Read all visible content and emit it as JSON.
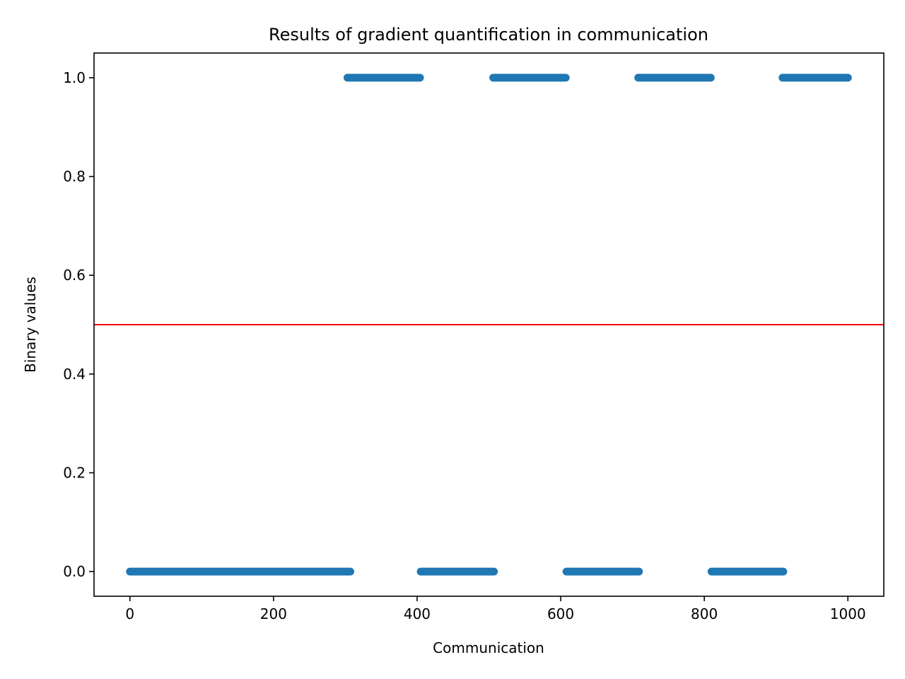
{
  "chart_data": {
    "type": "scatter",
    "title": "Results of gradient quantification in communication",
    "xlabel": "Communication",
    "ylabel": "Binary values",
    "xlim": [
      -50,
      1050
    ],
    "ylim": [
      -0.05,
      1.05
    ],
    "x_ticks": [
      0,
      200,
      400,
      600,
      800,
      1000
    ],
    "y_ticks": [
      0.0,
      0.2,
      0.4,
      0.6,
      0.8,
      1.0
    ],
    "x_tick_labels": [
      "0",
      "200",
      "400",
      "600",
      "800",
      "1000"
    ],
    "y_tick_labels": [
      "0.0",
      "0.2",
      "0.4",
      "0.6",
      "0.8",
      "1.0"
    ],
    "grid": false,
    "series": [
      {
        "color": "#1f77b4",
        "segments": [
          {
            "x_start": 0,
            "x_end": 307,
            "y": 0
          },
          {
            "x_start": 303,
            "x_end": 404,
            "y": 1
          },
          {
            "x_start": 405,
            "x_end": 507,
            "y": 0
          },
          {
            "x_start": 506,
            "x_end": 607,
            "y": 1
          },
          {
            "x_start": 608,
            "x_end": 709,
            "y": 0
          },
          {
            "x_start": 708,
            "x_end": 809,
            "y": 1
          },
          {
            "x_start": 810,
            "x_end": 910,
            "y": 0
          },
          {
            "x_start": 909,
            "x_end": 1000,
            "y": 1
          }
        ]
      }
    ],
    "threshold": {
      "y": 0.5,
      "color": "#ff0000"
    }
  }
}
